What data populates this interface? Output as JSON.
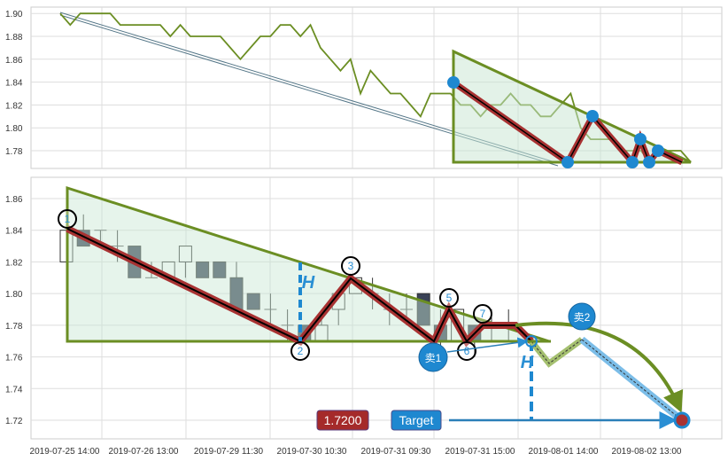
{
  "chart_data": [
    {
      "type": "line",
      "panel": "top",
      "yticks": [
        "1.90",
        "1.88",
        "1.86",
        "1.84",
        "1.82",
        "1.80",
        "1.78"
      ],
      "ylim": [
        1.765,
        1.905
      ],
      "grid": true,
      "series": [
        {
          "color": "#6b8e23",
          "values": [
            1.9,
            1.89,
            1.9,
            1.9,
            1.9,
            1.9,
            1.89,
            1.89,
            1.89,
            1.89,
            1.89,
            1.88,
            1.89,
            1.88,
            1.88,
            1.88,
            1.88,
            1.87,
            1.86,
            1.87,
            1.88,
            1.88,
            1.89,
            1.89,
            1.88,
            1.89,
            1.87,
            1.86,
            1.85,
            1.86,
            1.83,
            1.85,
            1.84,
            1.83,
            1.83,
            1.82,
            1.81,
            1.83,
            1.83,
            1.83,
            1.82,
            1.82,
            1.81,
            1.82,
            1.82,
            1.83,
            1.82,
            1.82,
            1.81,
            1.81,
            1.82,
            1.83,
            1.8,
            1.79,
            1.79,
            1.79,
            1.78,
            1.78,
            1.78,
            1.77,
            1.78,
            1.78,
            1.78,
            1.77
          ]
        }
      ]
    },
    {
      "type": "candlestick",
      "panel": "bottom",
      "yticks": [
        "1.86",
        "1.84",
        "1.82",
        "1.80",
        "1.78",
        "1.76",
        "1.74",
        "1.72"
      ],
      "ylim": [
        1.708,
        1.873
      ],
      "grid": true,
      "xticks": [
        "2019-07-25 14:00",
        "2019-07-26 13:00",
        "2019-07-29 11:30",
        "2019-07-30 10:30",
        "2019-07-31 09:30",
        "2019-07-31 15:00",
        "2019-08-01 14:00",
        "2019-08-02 13:00"
      ],
      "candles": [
        {
          "o": 1.82,
          "c": 1.84,
          "h": 1.85,
          "l": 1.82
        },
        {
          "o": 1.84,
          "c": 1.83,
          "h": 1.85,
          "l": 1.83
        },
        {
          "o": 1.84,
          "c": 1.84,
          "h": 1.84,
          "l": 1.83
        },
        {
          "o": 1.83,
          "c": 1.83,
          "h": 1.84,
          "l": 1.82
        },
        {
          "o": 1.83,
          "c": 1.81,
          "h": 1.83,
          "l": 1.81
        },
        {
          "o": 1.81,
          "c": 1.81,
          "h": 1.82,
          "l": 1.81
        },
        {
          "o": 1.81,
          "c": 1.82,
          "h": 1.82,
          "l": 1.81
        },
        {
          "o": 1.82,
          "c": 1.83,
          "h": 1.83,
          "l": 1.81
        },
        {
          "o": 1.82,
          "c": 1.81,
          "h": 1.82,
          "l": 1.81
        },
        {
          "o": 1.82,
          "c": 1.81,
          "h": 1.82,
          "l": 1.81
        },
        {
          "o": 1.81,
          "c": 1.79,
          "h": 1.82,
          "l": 1.79
        },
        {
          "o": 1.8,
          "c": 1.79,
          "h": 1.8,
          "l": 1.79
        },
        {
          "o": 1.79,
          "c": 1.79,
          "h": 1.8,
          "l": 1.78
        },
        {
          "o": 1.78,
          "c": 1.78,
          "h": 1.79,
          "l": 1.77
        },
        {
          "o": 1.78,
          "c": 1.77,
          "h": 1.78,
          "l": 1.77
        },
        {
          "o": 1.77,
          "c": 1.78,
          "h": 1.79,
          "l": 1.77
        },
        {
          "o": 1.79,
          "c": 1.8,
          "h": 1.8,
          "l": 1.78
        },
        {
          "o": 1.8,
          "c": 1.81,
          "h": 1.81,
          "l": 1.8
        },
        {
          "o": 1.8,
          "c": 1.8,
          "h": 1.81,
          "l": 1.79
        },
        {
          "o": 1.79,
          "c": 1.79,
          "h": 1.8,
          "l": 1.78
        },
        {
          "o": 1.79,
          "c": 1.79,
          "h": 1.8,
          "l": 1.78
        },
        {
          "o": 1.8,
          "c": 1.78,
          "h": 1.8,
          "l": 1.78
        },
        {
          "o": 1.78,
          "c": 1.77,
          "h": 1.79,
          "l": 1.76
        },
        {
          "o": 1.77,
          "c": 1.79,
          "h": 1.79,
          "l": 1.77
        },
        {
          "o": 1.78,
          "c": 1.77,
          "h": 1.78,
          "l": 1.76
        },
        {
          "o": 1.78,
          "c": 1.78,
          "h": 1.79,
          "l": 1.77
        },
        {
          "o": 1.78,
          "c": 1.78,
          "h": 1.79,
          "l": 1.77
        }
      ],
      "annotations": {
        "wave_points": [
          "1",
          "2",
          "3",
          "5",
          "6",
          "7"
        ],
        "sell1": "卖1",
        "sell2": "卖2",
        "height_mark": "H",
        "target_price": "1.7200",
        "target_label": "Target"
      },
      "colors": {
        "pattern": "#6b8e23",
        "fill": "#e3f2e8",
        "zigzag": "#a83232",
        "marker": "#1e88d0",
        "price_box": "#a52a2a"
      }
    }
  ]
}
